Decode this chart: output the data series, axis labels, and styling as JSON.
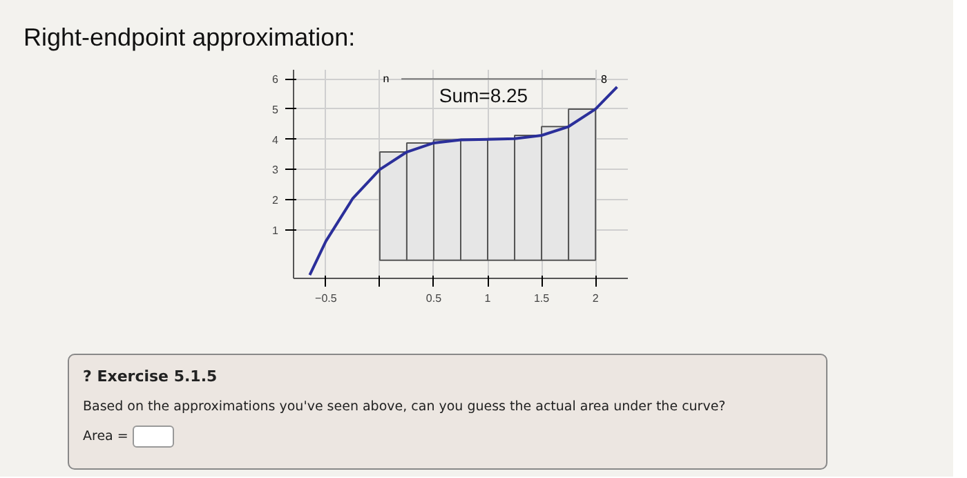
{
  "chart_data": {
    "type": "bar",
    "title": "Right-endpoint approximation:",
    "x": [
      0.125,
      0.375,
      0.625,
      0.875,
      1.125,
      1.375,
      1.625,
      1.875
    ],
    "series": [
      {
        "color": "#e6e6e6",
        "values": [
          3.58,
          3.88,
          3.98,
          4.0,
          4.02,
          4.13,
          4.42,
          5.0
        ]
      },
      {
        "type": "line",
        "color": "#2b2f9a",
        "x": [
          -0.65,
          -0.5,
          -0.25,
          0,
          0.25,
          0.5,
          0.75,
          1,
          1.25,
          1.5,
          1.75,
          2,
          2.2
        ],
        "values": [
          -0.49,
          0.63,
          2.05,
          3.0,
          3.58,
          3.88,
          3.98,
          4.0,
          4.02,
          4.13,
          4.42,
          5.0,
          5.73
        ]
      }
    ],
    "xlim": [
      -0.8,
      2.3
    ],
    "ylim": [
      -0.6,
      6.3
    ],
    "xticks": [
      -0.5,
      {
        "value": 0,
        "label": null
      },
      0.5,
      1,
      1.5,
      2
    ],
    "yticks": [
      1,
      2,
      3,
      4,
      5,
      6
    ],
    "grid": true,
    "annotations": [
      "Sum=8.25",
      "n",
      "8",
      "? Exercise 5.1.5",
      "Based on the approximations you've seen above, can you guess the actual area under the curve?",
      "Area ="
    ]
  }
}
